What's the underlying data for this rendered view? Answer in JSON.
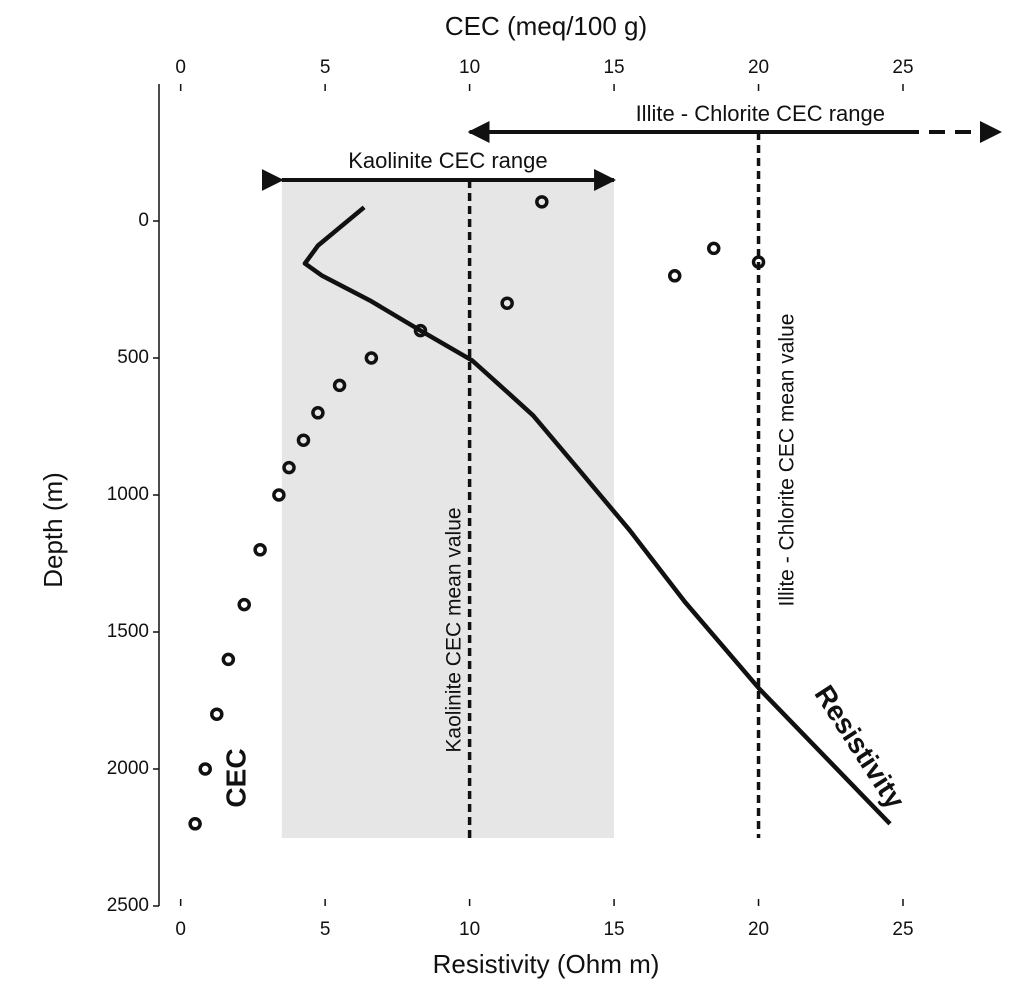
{
  "chart_data": {
    "type": "line",
    "x_label": "Resistivity (Ohm m)",
    "x2_label": "CEC (meq/100 g)",
    "y_label": "Depth (m)",
    "xlim": [
      -0.75,
      25
    ],
    "xticks": [
      0,
      5,
      10,
      15,
      20,
      25
    ],
    "x2lim": [
      -0.75,
      25
    ],
    "x2ticks": [
      0,
      5,
      10,
      15,
      20,
      25
    ],
    "ylim": [
      2500,
      -500
    ],
    "yticks": [
      0,
      500,
      1000,
      1500,
      2000,
      2500
    ],
    "series": [
      {
        "name": "Resistivity",
        "color": "#111111",
        "style": "line",
        "axis": "x",
        "x": [
          6.35,
          4.75,
          4.3,
          4.9,
          6.55,
          8.3,
          10.1,
          11.05,
          12.2,
          13.8,
          15.55,
          17.45,
          20.05,
          24.55
        ],
        "y": [
          -50,
          90,
          155,
          200,
          290,
          400,
          510,
          600,
          710,
          910,
          1130,
          1390,
          1710,
          2200
        ]
      },
      {
        "name": "CEC",
        "color": "#111111",
        "style": "markers",
        "axis": "x2",
        "x": [
          12.5,
          18.45,
          20.0,
          17.1,
          11.3,
          8.3,
          6.6,
          5.5,
          4.75,
          4.25,
          3.75,
          3.4,
          2.75,
          2.2,
          1.65,
          1.25,
          0.85,
          0.5
        ],
        "y": [
          -70,
          100,
          150,
          200,
          300,
          400,
          500,
          600,
          700,
          800,
          900,
          1000,
          1200,
          1400,
          1600,
          1800,
          2000,
          2200
        ]
      }
    ],
    "ranges": [
      {
        "label": "Kaolinite CEC range",
        "from": 3.5,
        "to": 15,
        "mean": 10,
        "mean_label": "Kaolinite CEC mean value"
      },
      {
        "label": "Illite - Chlorite CEC range",
        "from": 10,
        "to": 25,
        "mean": 20,
        "mean_label": "Illite - Chlorite CEC mean value"
      }
    ]
  }
}
